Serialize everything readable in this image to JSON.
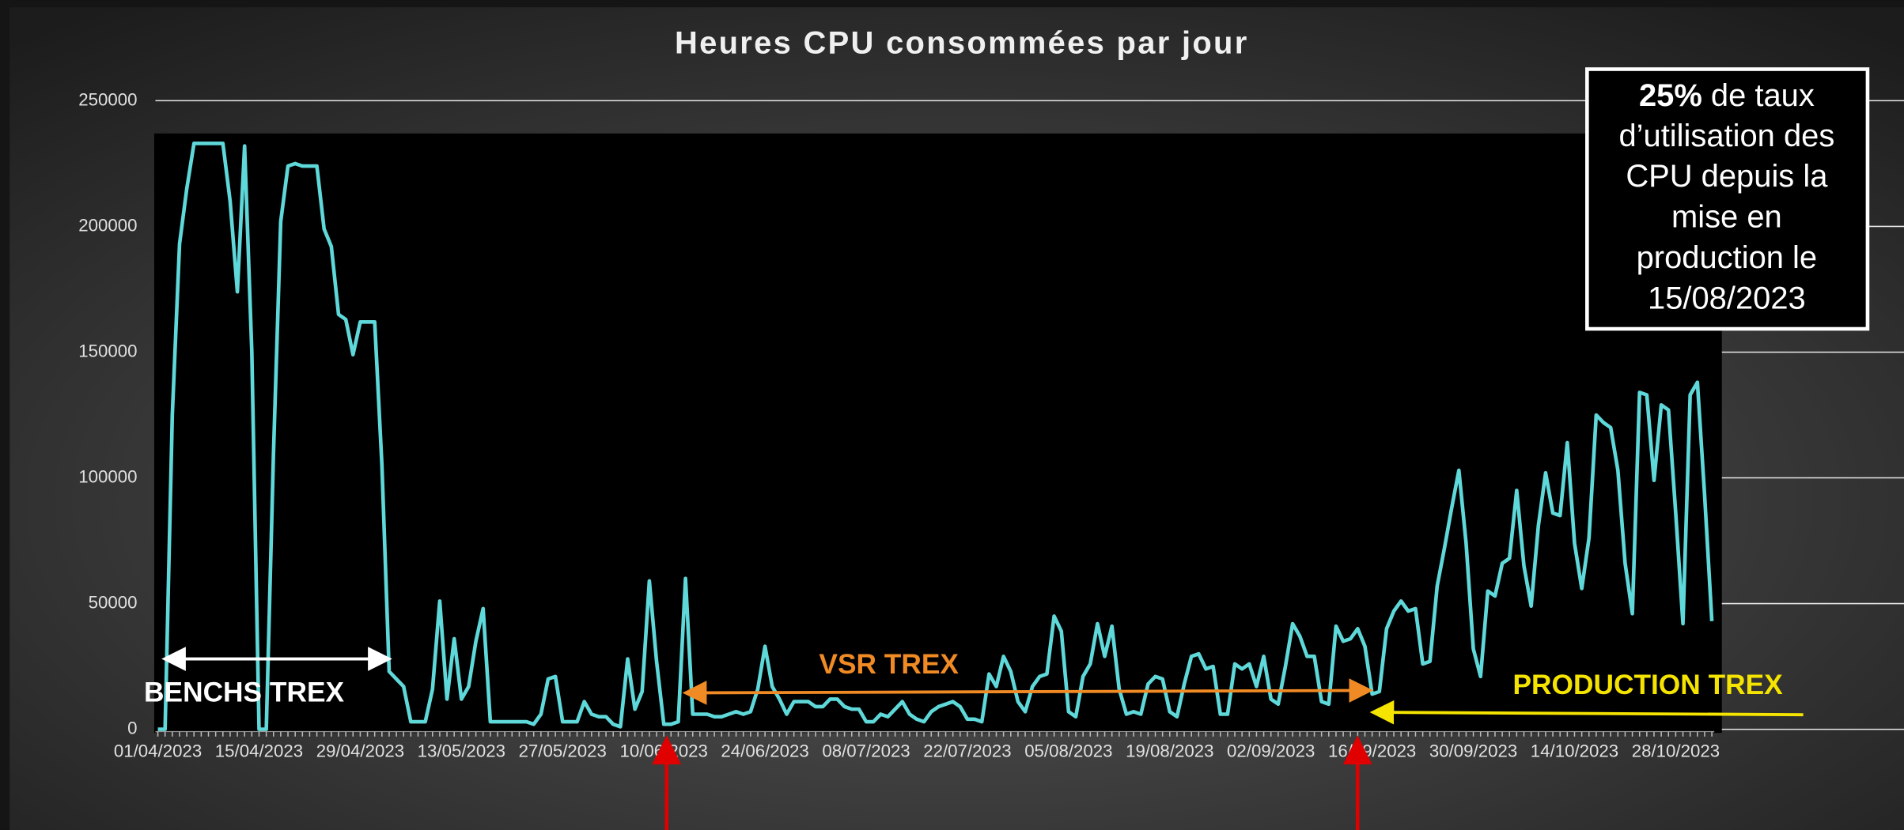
{
  "chart_data": {
    "type": "line",
    "title": "Heures CPU consommées par jour",
    "color": "#5fd8da",
    "ylim": [
      0,
      250000
    ],
    "yticks": [
      0,
      50000,
      100000,
      150000,
      200000,
      250000
    ],
    "categories": [
      "01/04/2023",
      null,
      null,
      null,
      null,
      null,
      null,
      null,
      null,
      null,
      null,
      null,
      null,
      null,
      "15/04/2023",
      null,
      null,
      null,
      null,
      null,
      null,
      null,
      null,
      null,
      null,
      null,
      null,
      null,
      "29/04/2023",
      null,
      null,
      null,
      null,
      null,
      null,
      null,
      null,
      null,
      null,
      null,
      null,
      null,
      "13/05/2023",
      null,
      null,
      null,
      null,
      null,
      null,
      null,
      null,
      null,
      null,
      null,
      null,
      null,
      "27/05/2023",
      null,
      null,
      null,
      null,
      null,
      null,
      null,
      null,
      null,
      null,
      null,
      null,
      null,
      "10/06/2023",
      null,
      null,
      null,
      null,
      null,
      null,
      null,
      null,
      null,
      null,
      null,
      null,
      null,
      "24/06/2023",
      null,
      null,
      null,
      null,
      null,
      null,
      null,
      null,
      null,
      null,
      null,
      null,
      null,
      "08/07/2023",
      null,
      null,
      null,
      null,
      null,
      null,
      null,
      null,
      null,
      null,
      null,
      null,
      null,
      "22/07/2023",
      null,
      null,
      null,
      null,
      null,
      null,
      null,
      null,
      null,
      null,
      null,
      null,
      null,
      "05/08/2023",
      null,
      null,
      null,
      null,
      null,
      null,
      null,
      null,
      null,
      null,
      null,
      null,
      null,
      "19/08/2023",
      null,
      null,
      null,
      null,
      null,
      null,
      null,
      null,
      null,
      null,
      null,
      null,
      null,
      "02/09/2023",
      null,
      null,
      null,
      null,
      null,
      null,
      null,
      null,
      null,
      null,
      null,
      null,
      null,
      "16/09/2023",
      null,
      null,
      null,
      null,
      null,
      null,
      null,
      null,
      null,
      null,
      null,
      null,
      null,
      "30/09/2023",
      null,
      null,
      null,
      null,
      null,
      null,
      null,
      null,
      null,
      null,
      null,
      null,
      null,
      "14/10/2023",
      null,
      null,
      null,
      null,
      null,
      null,
      null,
      null,
      null,
      null,
      null,
      null,
      null,
      "28/10/2023",
      null,
      null,
      null,
      null,
      null
    ],
    "values": [
      0,
      0,
      125000,
      193000,
      215000,
      233000,
      233000,
      233000,
      233000,
      233000,
      210000,
      174000,
      232000,
      150000,
      0,
      0,
      110000,
      202000,
      224000,
      225000,
      224000,
      224000,
      224000,
      199000,
      192000,
      165000,
      163000,
      149000,
      162000,
      162000,
      162000,
      105000,
      23000,
      20000,
      17000,
      3000,
      3000,
      3000,
      16000,
      51000,
      12000,
      36000,
      12000,
      17000,
      35000,
      48000,
      3000,
      3000,
      3000,
      3000,
      3000,
      3000,
      2000,
      6000,
      20000,
      21000,
      3000,
      3000,
      3000,
      11000,
      6000,
      5000,
      5000,
      2000,
      1000,
      28000,
      8000,
      15000,
      59000,
      27000,
      2000,
      2000,
      3000,
      60000,
      6000,
      6000,
      6000,
      5000,
      5000,
      6000,
      7000,
      6000,
      7000,
      16000,
      33000,
      17000,
      12000,
      6000,
      11000,
      11000,
      11000,
      9000,
      9000,
      12000,
      12000,
      9000,
      8000,
      8000,
      3000,
      3000,
      6000,
      5000,
      8000,
      11000,
      6000,
      4000,
      3000,
      7000,
      9000,
      10000,
      11000,
      9000,
      4000,
      4000,
      3000,
      22000,
      17000,
      29000,
      23000,
      11000,
      7000,
      17000,
      21000,
      22000,
      45000,
      39000,
      7000,
      5000,
      21000,
      26000,
      42000,
      29000,
      41000,
      16000,
      6000,
      7000,
      6000,
      18000,
      21000,
      20000,
      7000,
      5000,
      18000,
      29000,
      30000,
      24000,
      25000,
      6000,
      6000,
      26000,
      24000,
      26000,
      17000,
      29000,
      12000,
      10000,
      25000,
      42000,
      37000,
      29000,
      29000,
      11000,
      10000,
      41000,
      35000,
      36000,
      40000,
      33000,
      14000,
      15000,
      40000,
      47000,
      51000,
      47000,
      48000,
      26000,
      27000,
      57000,
      72000,
      88000,
      103000,
      74000,
      32000,
      21000,
      55000,
      53000,
      66000,
      68000,
      95000,
      65000,
      49000,
      81000,
      102000,
      86000,
      85000,
      114000,
      74000,
      56000,
      76000,
      125000,
      122000,
      120000,
      103000,
      66000,
      46000,
      134000,
      133000,
      99000,
      129000,
      127000,
      86000,
      42000,
      133000,
      138000,
      93000,
      43000
    ],
    "annotations": {
      "benchs": "BENCHS TREX",
      "vsr": "VSR TREX",
      "production": "PRODUCTION TREX"
    },
    "box": {
      "bold": "25%",
      "lines": [
        "de taux",
        "d’utilisation des",
        "CPU depuis la",
        "mise en",
        "production le",
        "15/08/2023"
      ]
    }
  }
}
